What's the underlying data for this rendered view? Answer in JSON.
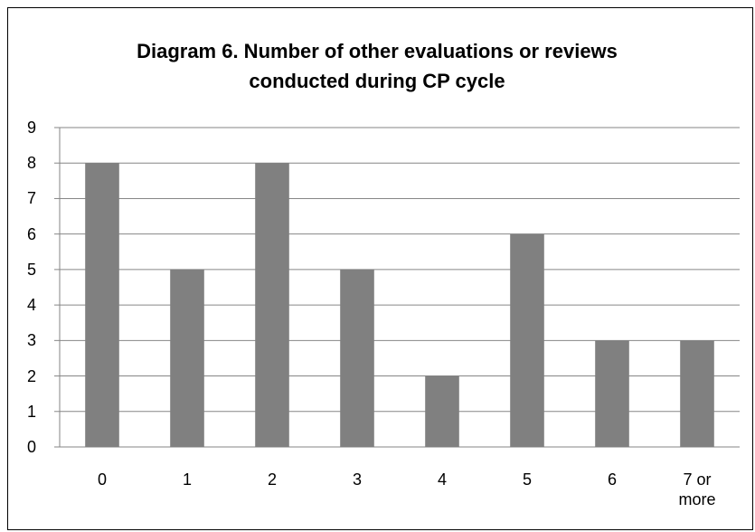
{
  "chart_data": {
    "type": "bar",
    "title": "Diagram 6. Number of other evaluations or reviews conducted during CP cycle",
    "categories": [
      "0",
      "1",
      "2",
      "3",
      "4",
      "5",
      "6",
      "7 or more"
    ],
    "values": [
      8,
      5,
      8,
      5,
      2,
      6,
      3,
      3
    ],
    "color": "#808080",
    "ylim": [
      0,
      9
    ],
    "yticks": [
      0,
      1,
      2,
      3,
      4,
      5,
      6,
      7,
      8,
      9
    ],
    "grid": true
  }
}
